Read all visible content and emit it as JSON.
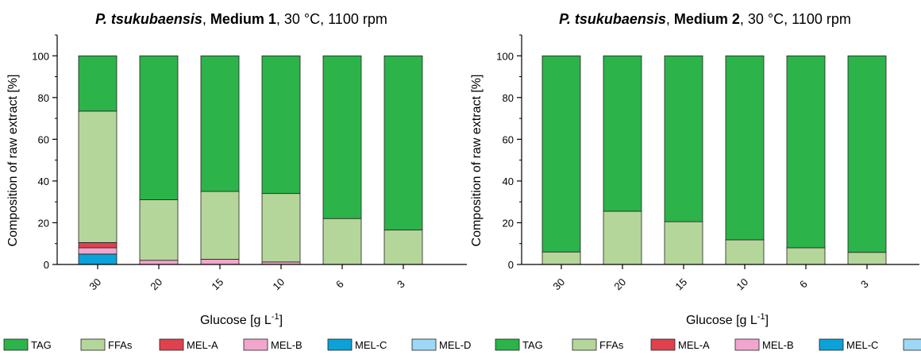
{
  "chart_data": [
    {
      "type": "bar",
      "stacked": true,
      "title_species": "P. tsukubaensis",
      "title_sep": ", ",
      "title_medium": "Medium 1",
      "title_conditions": ", 30 °C, 1100 rpm",
      "xlabel": "Glucose [g L",
      "xlabel_sup": "-1",
      "xlabel_close": "]",
      "ylabel": "Composition of raw extract [%]",
      "ylim": [
        0,
        110
      ],
      "yticks": [
        "0",
        "20",
        "40",
        "60",
        "80",
        "100"
      ],
      "categories": [
        "30",
        "20",
        "15",
        "10",
        "6",
        "3"
      ],
      "series": [
        {
          "name": "MEL-C",
          "values": [
            5,
            0,
            0,
            0,
            0,
            0
          ]
        },
        {
          "name": "MEL-B",
          "values": [
            3,
            2,
            2.5,
            1.2,
            0,
            0
          ]
        },
        {
          "name": "MEL-A",
          "values": [
            2.5,
            0,
            0,
            0,
            0,
            0
          ]
        },
        {
          "name": "MEL-D",
          "values": [
            0,
            0,
            0,
            0,
            0,
            0
          ]
        },
        {
          "name": "FFAs",
          "values": [
            63,
            29,
            32.5,
            32.8,
            22,
            16.5
          ]
        },
        {
          "name": "TAG",
          "values": [
            26.5,
            69,
            65,
            66,
            78,
            83.5
          ]
        }
      ],
      "legend": [
        {
          "name": "TAG",
          "color": "#2cb34a"
        },
        {
          "name": "FFAs",
          "color": "#b5d69a"
        },
        {
          "name": "MEL-A",
          "color": "#e0414f"
        },
        {
          "name": "MEL-B",
          "color": "#f2a6cd"
        },
        {
          "name": "MEL-C",
          "color": "#0aa2d9"
        },
        {
          "name": "MEL-D",
          "color": "#9fd8f5"
        }
      ],
      "legend_placement": "bottom",
      "grid": false
    },
    {
      "type": "bar",
      "stacked": true,
      "title_species": "P. tsukubaensis",
      "title_sep": ", ",
      "title_medium": "Medium 2",
      "title_conditions": ", 30 °C, 1100 rpm",
      "xlabel": "Glucose [g L",
      "xlabel_sup": "-1",
      "xlabel_close": "]",
      "ylabel": "Composition of raw extract [%]",
      "ylim": [
        0,
        110
      ],
      "yticks": [
        "0",
        "20",
        "40",
        "60",
        "80",
        "100"
      ],
      "categories": [
        "30",
        "20",
        "15",
        "10",
        "6",
        "3"
      ],
      "series": [
        {
          "name": "MEL-C",
          "values": [
            0,
            0,
            0,
            0,
            0,
            0
          ]
        },
        {
          "name": "MEL-B",
          "values": [
            0,
            0,
            0,
            0,
            0,
            0
          ]
        },
        {
          "name": "MEL-A",
          "values": [
            0,
            0,
            0,
            0,
            0,
            0
          ]
        },
        {
          "name": "MEL-D",
          "values": [
            0,
            0,
            0,
            0,
            0,
            0
          ]
        },
        {
          "name": "FFAs",
          "values": [
            6,
            25.5,
            20.5,
            11.8,
            8,
            5.8
          ]
        },
        {
          "name": "TAG",
          "values": [
            94,
            74.5,
            79.5,
            88.2,
            92,
            94.2
          ]
        }
      ],
      "legend": [
        {
          "name": "TAG",
          "color": "#2cb34a"
        },
        {
          "name": "FFAs",
          "color": "#b5d69a"
        },
        {
          "name": "MEL-A",
          "color": "#e0414f"
        },
        {
          "name": "MEL-B",
          "color": "#f2a6cd"
        },
        {
          "name": "MEL-C",
          "color": "#0aa2d9"
        },
        {
          "name": "MEL-D",
          "color": "#9fd8f5"
        }
      ],
      "legend_placement": "bottom",
      "grid": false
    }
  ]
}
